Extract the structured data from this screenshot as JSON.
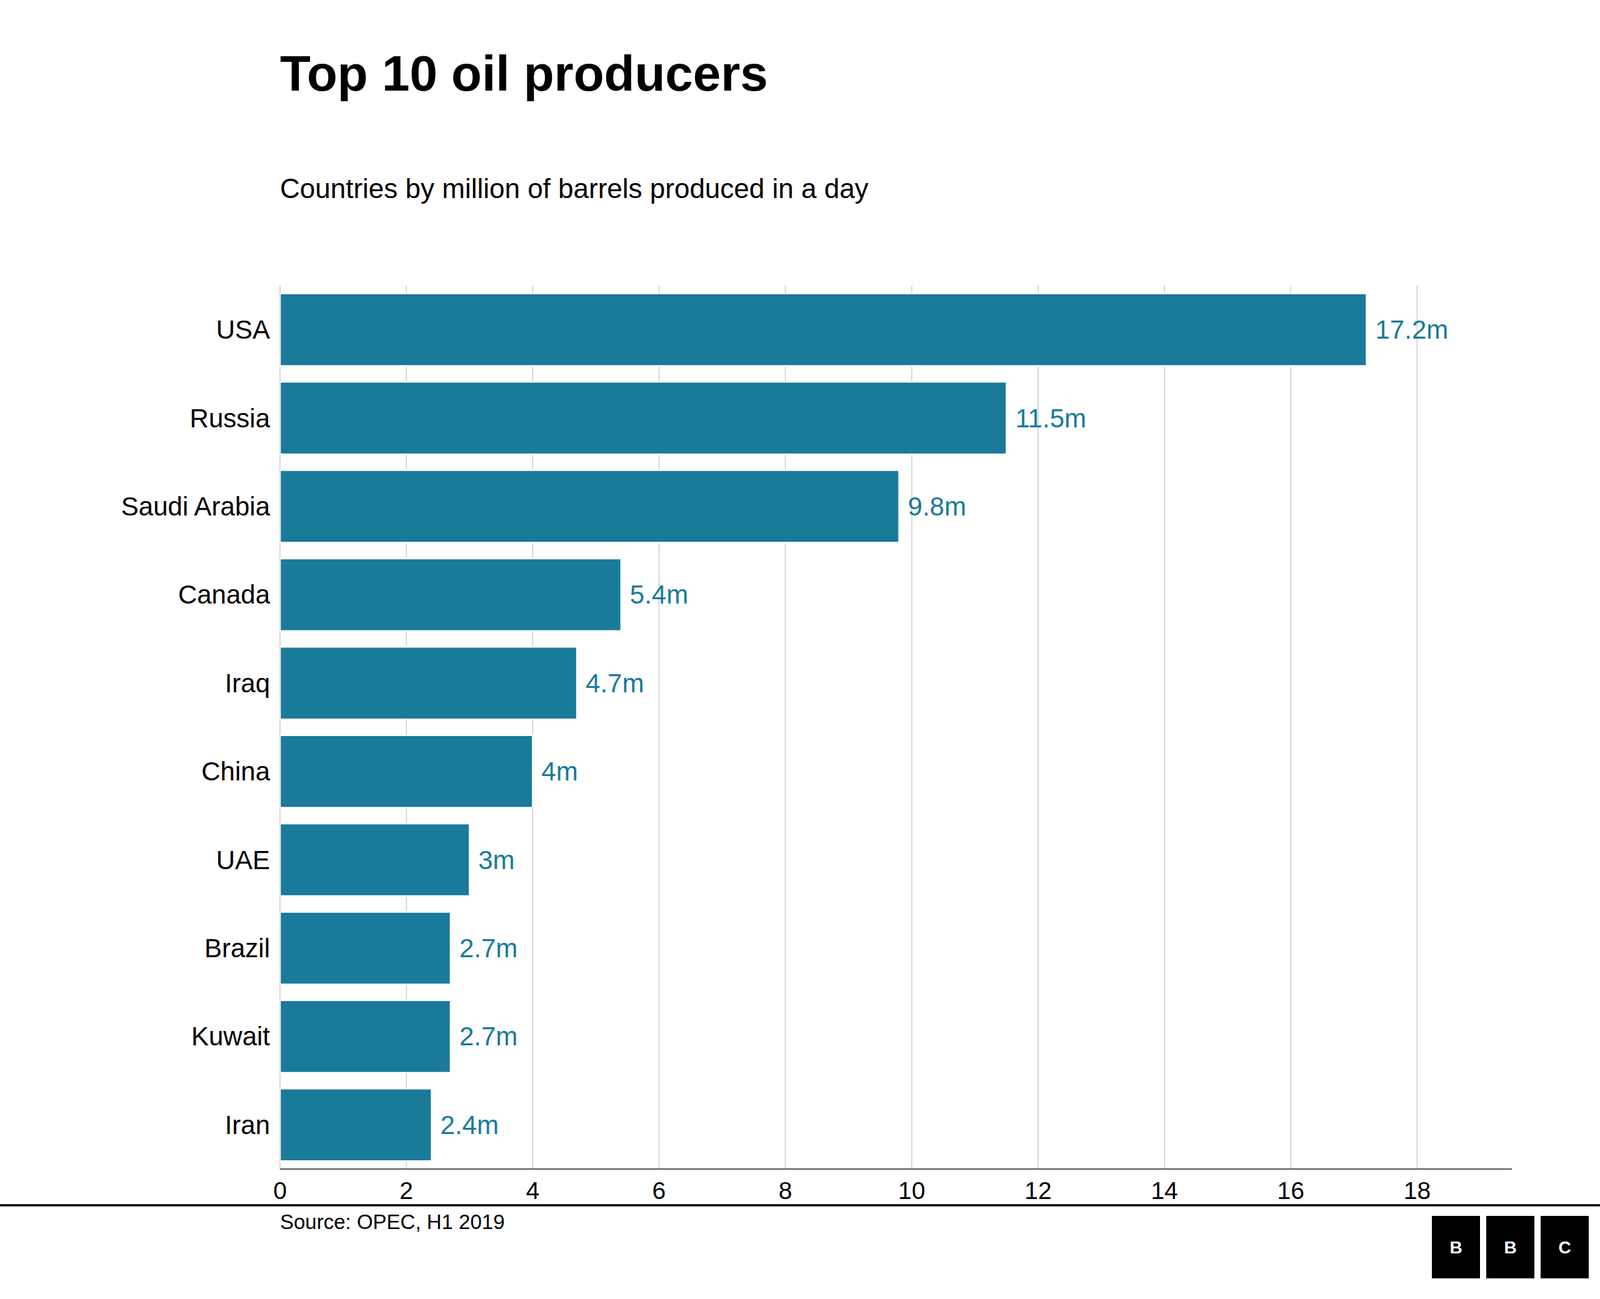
{
  "chart_data": {
    "type": "bar",
    "orientation": "horizontal",
    "title": "Top 10 oil producers",
    "subtitle": "Countries by million of barrels produced in a day",
    "annotations": [
      "Source: OPEC, H1 2019",
      "BBC"
    ],
    "categories": [
      "USA",
      "Russia",
      "Saudi Arabia",
      "Canada",
      "Iraq",
      "China",
      "UAE",
      "Brazil",
      "Kuwait",
      "Iran"
    ],
    "values": [
      17.2,
      11.5,
      9.8,
      5.4,
      4.7,
      4.0,
      3.0,
      2.7,
      2.7,
      2.4
    ],
    "value_labels": [
      "17.2m",
      "11.5m",
      "9.8m",
      "5.4m",
      "4.7m",
      "4m",
      "3m",
      "2.7m",
      "2.7m",
      "2.4m"
    ],
    "data_labels": true,
    "color": "#1a7a9a",
    "xlim": [
      0,
      19.5
    ],
    "xticks": [
      0,
      2,
      4,
      6,
      8,
      10,
      12,
      14,
      16,
      18
    ],
    "grid": true
  }
}
